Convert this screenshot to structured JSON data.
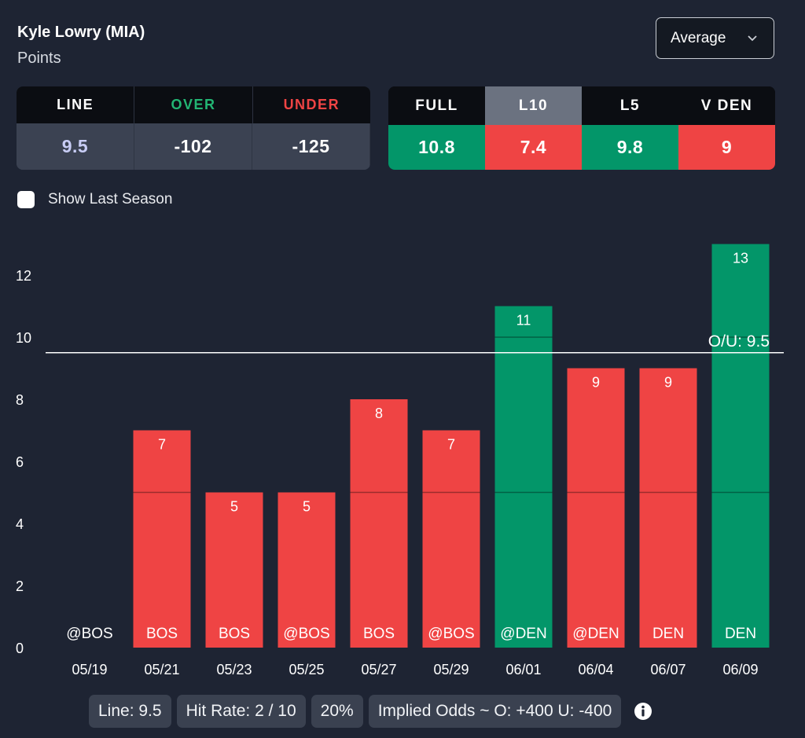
{
  "player": {
    "name": "Kyle Lowry (MIA)",
    "stat": "Points"
  },
  "dropdown": {
    "selected": "Average"
  },
  "odds": {
    "headers": [
      {
        "label": "LINE",
        "color": "#ffffff"
      },
      {
        "label": "OVER",
        "color": "#22b573"
      },
      {
        "label": "UNDER",
        "color": "#ef4444"
      }
    ],
    "values": [
      {
        "value": "9.5",
        "color": "#c8cdf5"
      },
      {
        "value": "-102",
        "color": "#ffffff"
      },
      {
        "value": "-125",
        "color": "#ffffff"
      }
    ]
  },
  "averages": {
    "headers": [
      {
        "label": "FULL",
        "active": false
      },
      {
        "label": "L10",
        "active": true
      },
      {
        "label": "L5",
        "active": false
      },
      {
        "label": "V DEN",
        "active": false
      }
    ],
    "values": [
      {
        "value": "10.8",
        "status": "over"
      },
      {
        "value": "7.4",
        "status": "under"
      },
      {
        "value": "9.8",
        "status": "over"
      },
      {
        "value": "9",
        "status": "under"
      }
    ]
  },
  "show_last_season": {
    "label": "Show Last Season",
    "checked": false
  },
  "colors": {
    "over": "#039669",
    "under": "#ef4444",
    "header_active": "#6b7280",
    "background": "#1e2433"
  },
  "chart_data": {
    "type": "bar",
    "title": "",
    "xlabel": "",
    "ylabel": "",
    "ylim": [
      0,
      13
    ],
    "yticks": [
      0,
      2,
      4,
      6,
      8,
      10,
      12
    ],
    "line": {
      "value": 9.5,
      "label": "O/U: 9.5"
    },
    "categories": [
      "05/19",
      "05/21",
      "05/23",
      "05/25",
      "05/27",
      "05/29",
      "06/01",
      "06/04",
      "06/07",
      "06/09"
    ],
    "opponents": [
      "@BOS",
      "BOS",
      "BOS",
      "@BOS",
      "BOS",
      "@BOS",
      "@DEN",
      "@DEN",
      "DEN",
      "DEN"
    ],
    "values": [
      0,
      7,
      5,
      5,
      8,
      7,
      11,
      9,
      9,
      13
    ],
    "result": [
      "none",
      "under",
      "under",
      "under",
      "under",
      "under",
      "over",
      "under",
      "under",
      "over"
    ]
  },
  "footer": {
    "line": "Line: 9.5",
    "hit_rate": "Hit Rate: 2 / 10",
    "percent": "20%",
    "implied_odds": "Implied Odds ~ O: +400 U: -400"
  }
}
